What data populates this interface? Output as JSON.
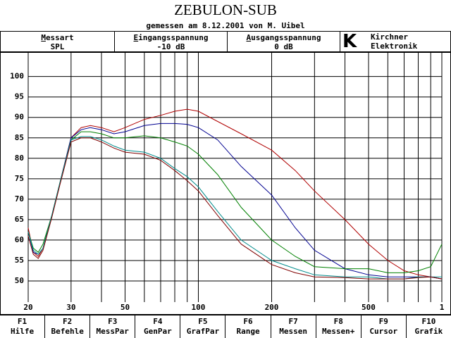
{
  "header": {
    "title": "ZEBULON-SUB",
    "subtitle": "gemessen am 8.12.2001 von M. Uibel",
    "fields": [
      {
        "label": "Messart",
        "value": "SPL"
      },
      {
        "label": "Eingangsspannung",
        "value": "-10 dB"
      },
      {
        "label": "Ausgangsspannung",
        "value": "0 dB"
      }
    ],
    "logo": "K",
    "company": [
      "Kirchner",
      "Elektronik"
    ]
  },
  "chart_data": {
    "type": "line",
    "log_x": true,
    "grid": true,
    "x": [
      20,
      21,
      22,
      23,
      25,
      27,
      30,
      33,
      36,
      40,
      45,
      50,
      60,
      70,
      80,
      90,
      100,
      120,
      150,
      200,
      250,
      300,
      400,
      500,
      600,
      700,
      800,
      900,
      1000
    ],
    "series": [
      {
        "color": "#b00000",
        "values": [
          63,
          57,
          56,
          58,
          66,
          74,
          85,
          87.5,
          88,
          87.5,
          86.5,
          87.5,
          89.5,
          90.5,
          91.5,
          92,
          91.5,
          89,
          86,
          82,
          77,
          72,
          65,
          59,
          55,
          52.5,
          51.5,
          51,
          50.5
        ]
      },
      {
        "color": "#000090",
        "values": [
          62,
          57,
          56.5,
          58,
          66,
          74,
          85,
          87,
          87.5,
          87,
          86,
          86.5,
          88,
          88.5,
          88.5,
          88.3,
          87.5,
          84.5,
          78,
          71,
          63,
          57.5,
          53,
          51.5,
          51,
          51,
          51,
          51,
          50.5
        ]
      },
      {
        "color": "#008000",
        "values": [
          62,
          58,
          57,
          59,
          66,
          74,
          84.5,
          86.5,
          86.5,
          86,
          85,
          85,
          85.5,
          85,
          84,
          83,
          81,
          76,
          68,
          60,
          56,
          53.5,
          53,
          53,
          52,
          52,
          52.5,
          53.5,
          59
        ]
      },
      {
        "color": "#008b8b",
        "values": [
          62,
          57.5,
          56.5,
          58,
          66,
          74,
          84.5,
          85.3,
          85.3,
          84.5,
          83,
          82,
          81.5,
          80,
          77.5,
          75.5,
          73,
          67,
          60,
          55,
          53,
          51.5,
          51,
          51,
          50.5,
          50.5,
          51,
          51,
          51
        ]
      },
      {
        "color": "#800000",
        "values": [
          61,
          56.5,
          55.5,
          57.5,
          65.5,
          73.5,
          84,
          85,
          85,
          84,
          82.5,
          81.5,
          81,
          79.5,
          77,
          74.5,
          72,
          66,
          59,
          54,
          52,
          51,
          50.8,
          50.5,
          50.5,
          50.5,
          50.8,
          51,
          50.5
        ]
      }
    ],
    "xlim": [
      20,
      1000
    ],
    "ylim": [
      41.9,
      105.8
    ],
    "xticks": [
      20,
      30,
      50,
      100,
      200,
      500,
      {
        "value": 1000,
        "label": "1"
      }
    ],
    "xgrid": [
      20,
      30,
      40,
      50,
      60,
      70,
      80,
      90,
      100,
      200,
      300,
      400,
      500,
      600,
      700,
      800,
      900,
      1000
    ],
    "yticks": [
      50,
      55,
      60,
      65,
      70,
      75,
      80,
      85,
      90,
      95,
      100
    ]
  },
  "function_keys": [
    {
      "key": "F1",
      "label": "Hilfe"
    },
    {
      "key": "F2",
      "label": "Befehle"
    },
    {
      "key": "F3",
      "label": "MessPar"
    },
    {
      "key": "F4",
      "label": "GenPar"
    },
    {
      "key": "F5",
      "label": "GrafPar"
    },
    {
      "key": "F6",
      "label": "Range"
    },
    {
      "key": "F7",
      "label": "Messen"
    },
    {
      "key": "F8",
      "label": "Messen+"
    },
    {
      "key": "F9",
      "label": "Cursor"
    },
    {
      "key": "F10",
      "label": "Grafik"
    }
  ]
}
